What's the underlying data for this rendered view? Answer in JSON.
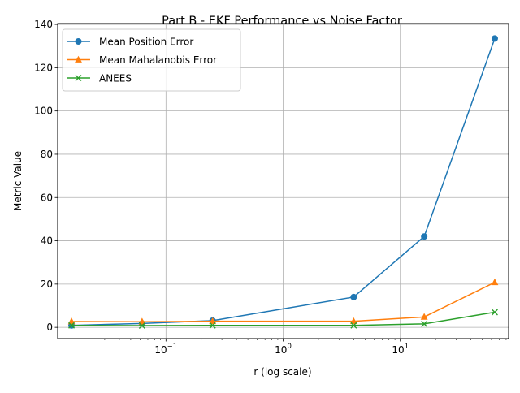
{
  "chart_data": {
    "type": "line",
    "title": "Part B - EKF Performance vs Noise Factor",
    "xlabel": "r (log scale)",
    "ylabel": "Metric Value",
    "x_scale": "log",
    "x": [
      0.015625,
      0.0625,
      0.25,
      4,
      16,
      64
    ],
    "xlim": [
      0.0119,
      84.0
    ],
    "ylim": [
      -5.2,
      140.4
    ],
    "x_ticks": [
      {
        "value": 0.1,
        "base": "10",
        "exp": "−1"
      },
      {
        "value": 1,
        "base": "10",
        "exp": "0"
      },
      {
        "value": 10,
        "base": "10",
        "exp": "1"
      }
    ],
    "y_ticks": [
      0,
      20,
      40,
      60,
      80,
      100,
      120,
      140
    ],
    "grid": true,
    "legend_position": "upper left",
    "series": [
      {
        "name": "Mean Position Error",
        "color": "#1f77b4",
        "marker": "circle",
        "values": [
          0.9,
          1.8,
          3.1,
          14.0,
          42.0,
          133.5
        ]
      },
      {
        "name": "Mean Mahalanobis Error",
        "color": "#ff7f0e",
        "marker": "triangle",
        "values": [
          2.7,
          2.6,
          2.8,
          2.8,
          4.8,
          20.8
        ]
      },
      {
        "name": "ANEES",
        "color": "#2ca02c",
        "marker": "x",
        "values": [
          0.9,
          0.8,
          0.9,
          0.9,
          1.6,
          7.0
        ]
      }
    ]
  }
}
